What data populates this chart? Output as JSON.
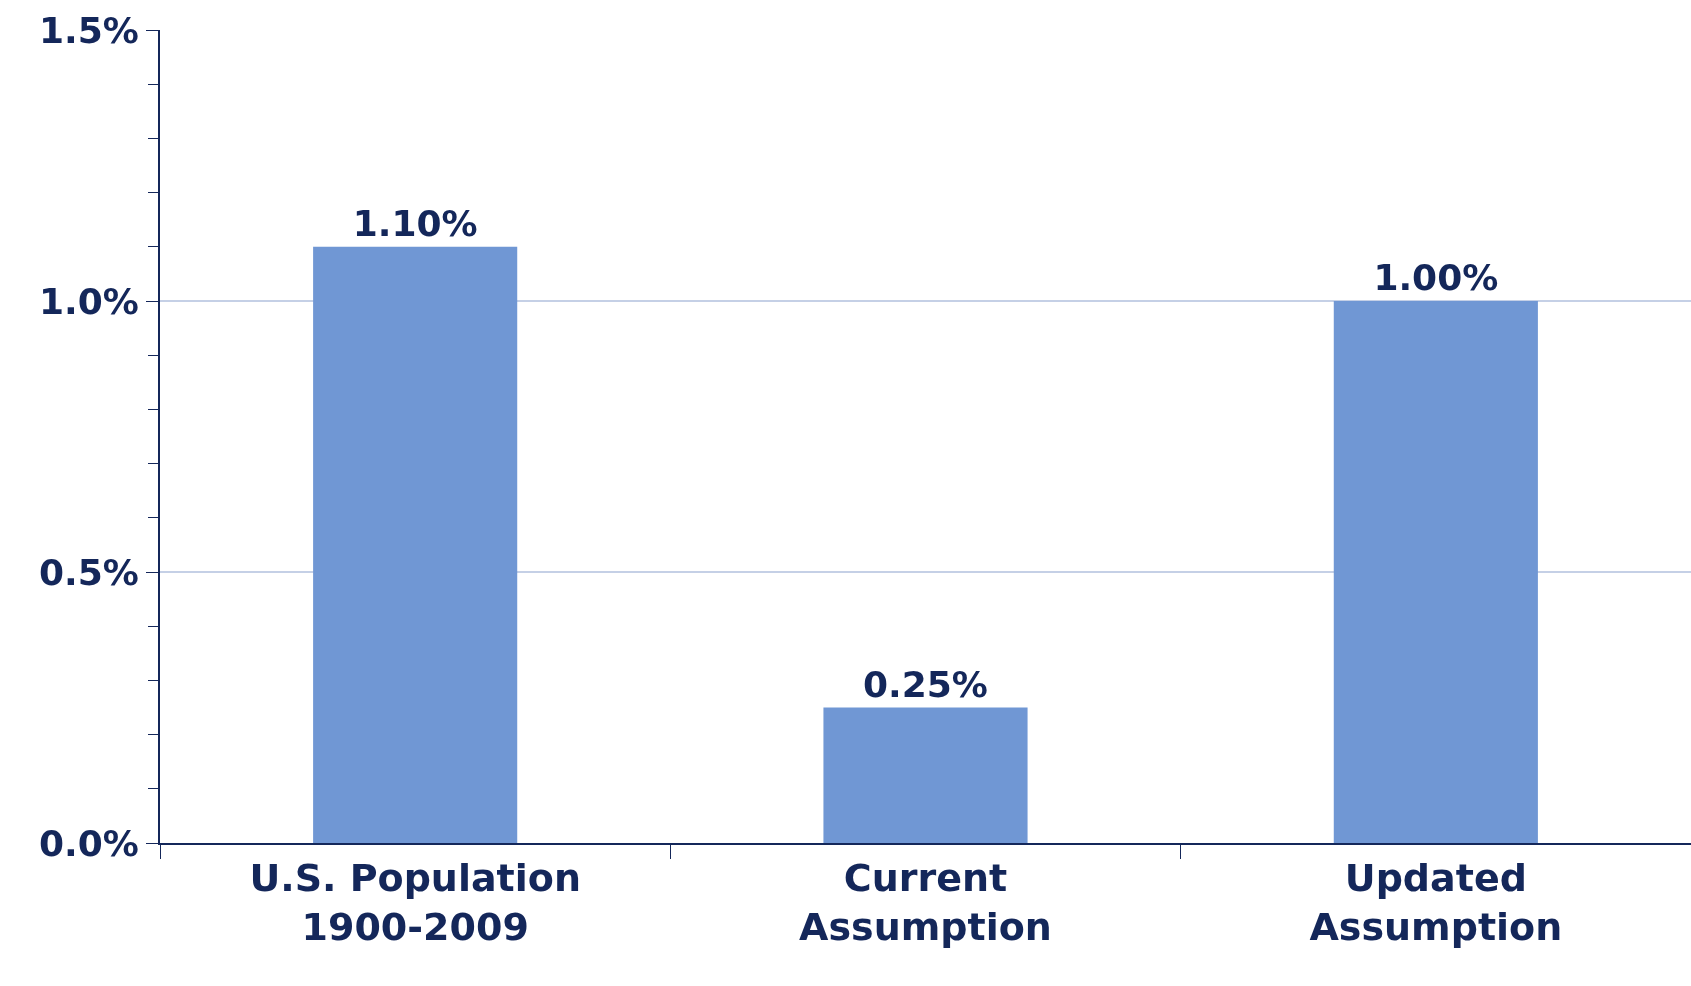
{
  "chart_data": {
    "type": "bar",
    "categories": [
      "U.S. Population\n1900-2009",
      "Current\nAssumption",
      "Updated\nAssumption"
    ],
    "values": [
      1.1,
      0.25,
      1.0
    ],
    "value_labels": [
      "1.10%",
      "0.25%",
      "1.00%"
    ],
    "color": "#7097d4",
    "ylim": [
      0,
      1.5
    ],
    "yticks": [
      {
        "value": 0,
        "label": "0.0%"
      },
      {
        "value": 0.1,
        "label": null
      },
      {
        "value": 0.2,
        "label": null
      },
      {
        "value": 0.3,
        "label": null
      },
      {
        "value": 0.4,
        "label": null
      },
      {
        "value": 0.5,
        "label": "0.5%"
      },
      {
        "value": 0.6,
        "label": null
      },
      {
        "value": 0.7,
        "label": null
      },
      {
        "value": 0.8,
        "label": null
      },
      {
        "value": 0.9,
        "label": null
      },
      {
        "value": 1.0,
        "label": "1.0%"
      },
      {
        "value": 1.1,
        "label": null
      },
      {
        "value": 1.2,
        "label": null
      },
      {
        "value": 1.3,
        "label": null
      },
      {
        "value": 1.4,
        "label": null
      },
      {
        "value": 1.5,
        "label": "1.5%"
      }
    ],
    "grid": "y"
  }
}
